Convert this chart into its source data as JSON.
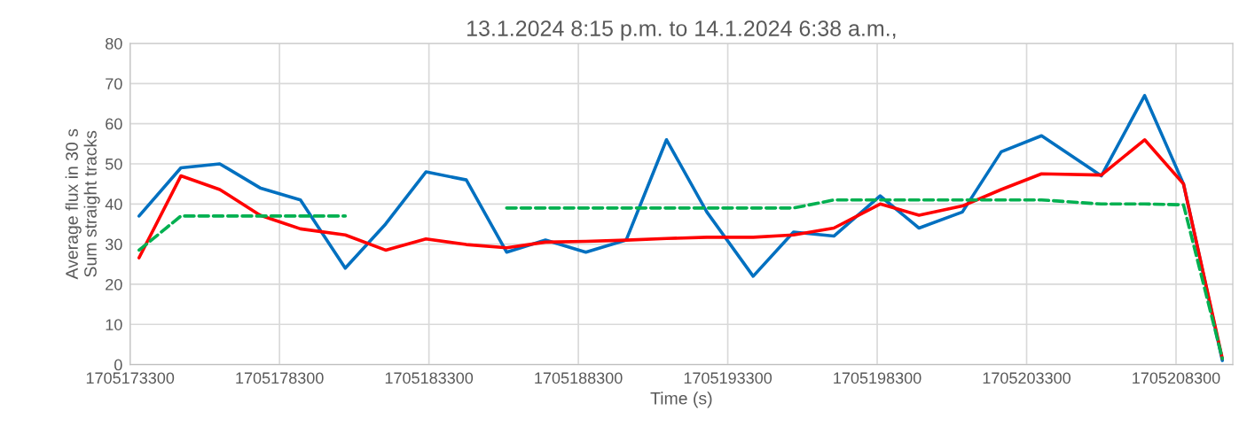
{
  "chart_data": {
    "type": "line",
    "title": "13.1.2024 8:15 p.m. to 14.1.2024 6:38 a.m.,",
    "xlabel": "Time (s)",
    "ylabel": "Average flux in 30 s\nSum straight tracks",
    "x": [
      1705173600,
      1705175000,
      1705176300,
      1705177650,
      1705179000,
      1705180500,
      1705181850,
      1705183200,
      1705184550,
      1705185900,
      1705187200,
      1705188550,
      1705189900,
      1705191250,
      1705192600,
      1705194150,
      1705195500,
      1705196850,
      1705198400,
      1705199700,
      1705201150,
      1705202450,
      1705203800,
      1705205800,
      1705207250,
      1705208550,
      1705209850
    ],
    "series": [
      {
        "color": "#00b050",
        "line_style": "dashed",
        "values": [
          28.5,
          37,
          37,
          37,
          37,
          37,
          null,
          null,
          null,
          39,
          39,
          39,
          39,
          39,
          39,
          39,
          39,
          41,
          41,
          41,
          41,
          41,
          41,
          40,
          40,
          39.8,
          1.5
        ]
      },
      {
        "color": "#ff0000",
        "line_style": "solid",
        "values": [
          26.6,
          47,
          43.6,
          37.2,
          33.8,
          32.3,
          28.5,
          31.3,
          29.9,
          29.1,
          30.5,
          30.7,
          31,
          31.4,
          31.7,
          31.7,
          32.3,
          34,
          40,
          37.2,
          39.5,
          43.6,
          47.5,
          47.2,
          56,
          45,
          1.5
        ]
      },
      {
        "color": "#0070c0",
        "line_style": "solid",
        "values": [
          37,
          49,
          50,
          44,
          41,
          24,
          35,
          48,
          46,
          28,
          31,
          28,
          31,
          56,
          38,
          22,
          33,
          32,
          42,
          34,
          38,
          53,
          57,
          47,
          67,
          45,
          1
        ]
      }
    ],
    "xlim": [
      1705173300,
      1705210200
    ],
    "xticks": [
      1705173300,
      1705178300,
      1705183300,
      1705188300,
      1705193300,
      1705198300,
      1705203300,
      1705208300
    ],
    "ylim": [
      0,
      80
    ],
    "yticks": [
      0,
      10,
      20,
      30,
      40,
      50,
      60,
      70,
      80
    ],
    "grid": true,
    "marker": "none",
    "legend": false
  }
}
